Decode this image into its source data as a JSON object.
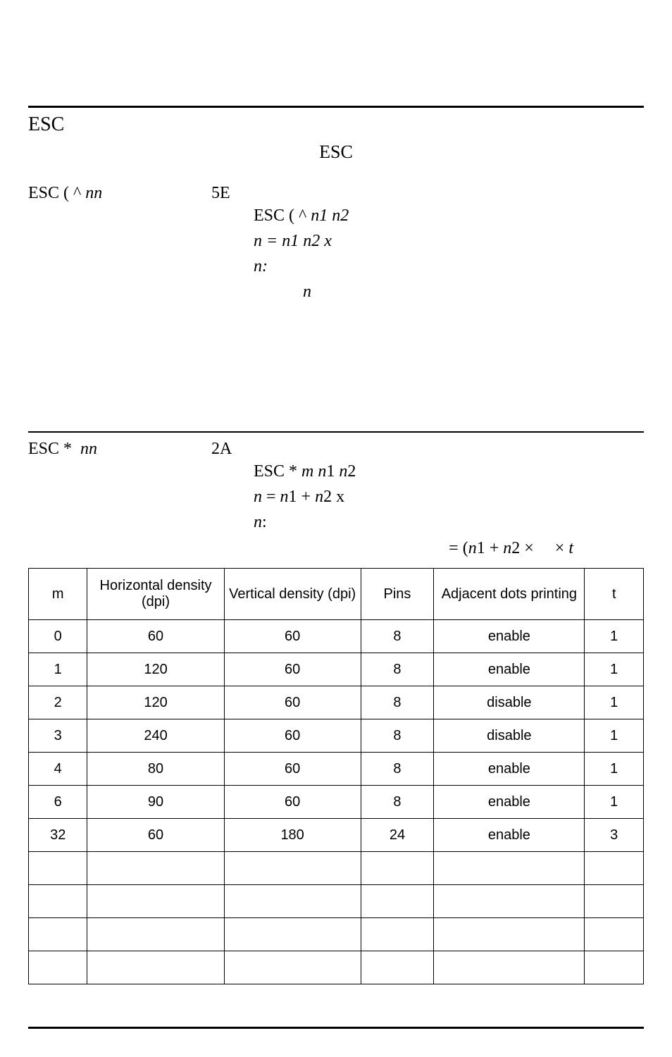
{
  "page": {
    "background_color": "#ffffff",
    "text_color": "#000000",
    "serif_font": "Times New Roman",
    "sans_font": "Arial"
  },
  "section1": {
    "title": "ESC",
    "center_label": "ESC",
    "cmd_left_prefix": "ESC ( ",
    "cmd_left_caret": "^",
    "cmd_left_nn": "nn",
    "hex": "5E",
    "line1_prefix": "ESC ( ",
    "line1_caret": "^",
    "line1_rest": " n1 n2",
    "line2": "n = n1     n2 x",
    "line3": "n:",
    "line4": "n"
  },
  "section2": {
    "cmd_left_prefix": "ESC ",
    "cmd_left_star": "*",
    "cmd_left_nn": "nn",
    "hex": "2A",
    "line1": "ESC * m n1 n2",
    "line2": "n = n1 + n2 x",
    "line3": "n:",
    "formula": "= (n1 + n2 ×      × t"
  },
  "table": {
    "columns": [
      {
        "key": "m",
        "label": "m",
        "class": "col-m"
      },
      {
        "key": "h",
        "label": "Horizontal density (dpi)",
        "class": "col-h"
      },
      {
        "key": "v",
        "label": "Vertical density (dpi)",
        "class": "col-v"
      },
      {
        "key": "p",
        "label": "Pins",
        "class": "col-p"
      },
      {
        "key": "a",
        "label": "Adjacent dots printing",
        "class": "col-a"
      },
      {
        "key": "t",
        "label": "t",
        "class": "col-t"
      }
    ],
    "rows": [
      [
        "0",
        "60",
        "60",
        "8",
        "enable",
        "1"
      ],
      [
        "1",
        "120",
        "60",
        "8",
        "enable",
        "1"
      ],
      [
        "2",
        "120",
        "60",
        "8",
        "disable",
        "1"
      ],
      [
        "3",
        "240",
        "60",
        "8",
        "disable",
        "1"
      ],
      [
        "4",
        "80",
        "60",
        "8",
        "enable",
        "1"
      ],
      [
        "6",
        "90",
        "60",
        "8",
        "enable",
        "1"
      ],
      [
        "32",
        "60",
        "180",
        "24",
        "enable",
        "3"
      ],
      [
        "",
        "",
        "",
        "",
        "",
        ""
      ],
      [
        "",
        "",
        "",
        "",
        "",
        ""
      ],
      [
        "",
        "",
        "",
        "",
        "",
        ""
      ],
      [
        "",
        "",
        "",
        "",
        "",
        ""
      ]
    ],
    "border_color": "#000000",
    "cell_fontsize": 20,
    "header_fontsize": 20
  }
}
